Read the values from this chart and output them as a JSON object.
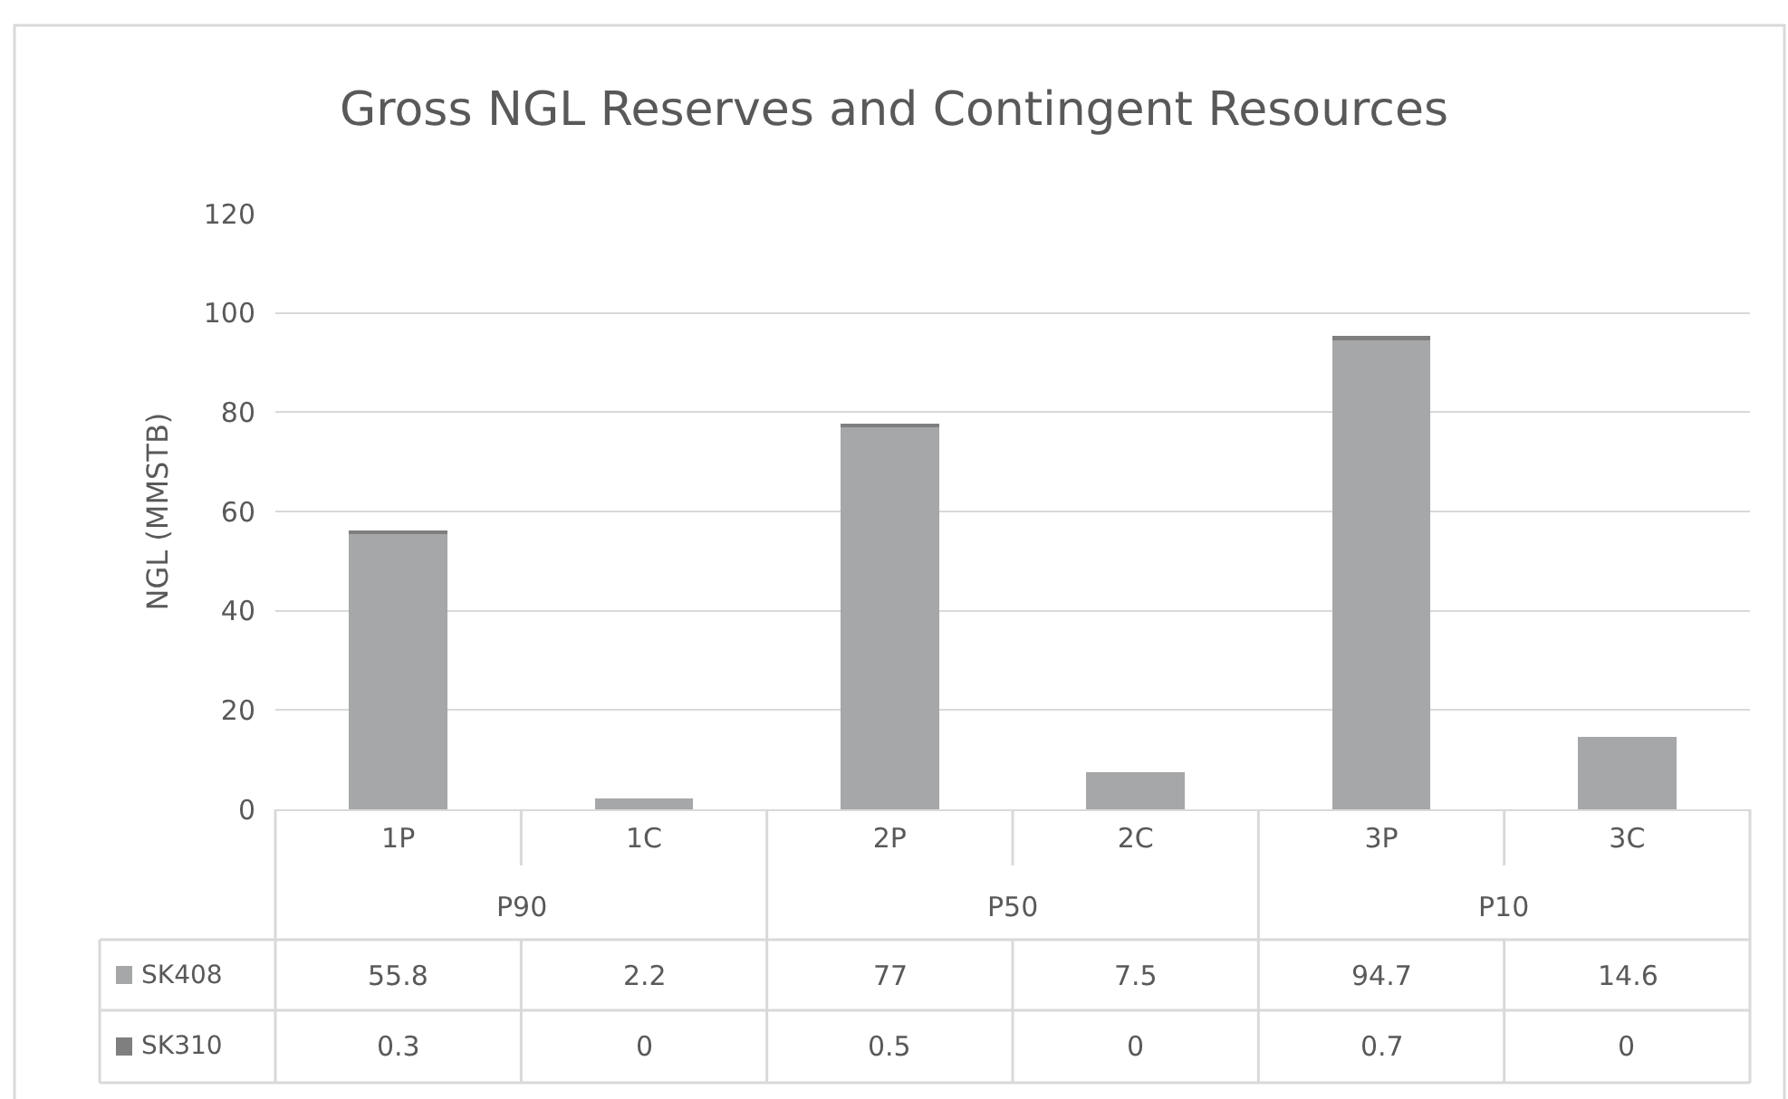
{
  "chart_data": {
    "type": "bar",
    "title": "Gross NGL Reserves and Contingent Resources",
    "ylabel": "NGL (MMSTB)",
    "categories": [
      "1P",
      "1C",
      "2P",
      "2C",
      "3P",
      "3C"
    ],
    "annotations": [
      "P90",
      "P50",
      "P10"
    ],
    "stacked": true,
    "series": [
      {
        "name": "SK408",
        "color": "#a5a7a9",
        "values": [
          55.8,
          2.2,
          77,
          7.5,
          94.7,
          14.6
        ]
      },
      {
        "name": "SK310",
        "color": "#7f7f7f",
        "values": [
          0.3,
          0,
          0.5,
          0,
          0.7,
          0
        ]
      }
    ],
    "data_labels": true,
    "ylim": [
      0,
      120
    ],
    "yticks": [
      0,
      20,
      40,
      60,
      80,
      100,
      120
    ],
    "grid": "y",
    "legend": "bottom left"
  }
}
